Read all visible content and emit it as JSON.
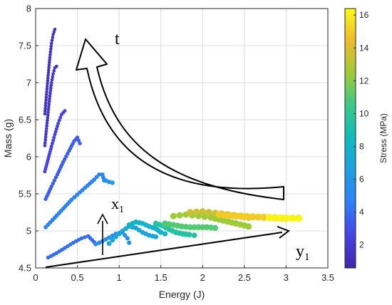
{
  "chart_data": {
    "type": "scatter",
    "xlabel": "Energy (J)",
    "ylabel": "Mass (g)",
    "xlim": [
      0,
      3.5
    ],
    "ylim": [
      4.5,
      8
    ],
    "xticks": [
      "0",
      "0.5",
      "1",
      "1.5",
      "2",
      "2.5",
      "3",
      "3.5"
    ],
    "yticks": [
      "4.5",
      "5",
      "5.5",
      "6",
      "6.5",
      "7",
      "7.5",
      "8"
    ],
    "grid": true,
    "colorbar": {
      "label": "Stress (MPa)",
      "range": [
        0.6,
        16.4
      ],
      "ticks": [
        "2",
        "4",
        "6",
        "8",
        "10",
        "12",
        "14",
        "16"
      ],
      "colormap": "parula"
    },
    "annotations": [
      {
        "text": "t",
        "subscript": ""
      },
      {
        "text": "x",
        "subscript": "1"
      },
      {
        "text": "y",
        "subscript": "1"
      }
    ],
    "series": [
      {
        "stress": 1.5,
        "x": [
          0.11,
          0.13,
          0.15,
          0.17,
          0.19,
          0.21,
          0.23
        ],
        "y": [
          6.58,
          6.84,
          7.1,
          7.34,
          7.53,
          7.65,
          7.72
        ]
      },
      {
        "stress": 1.8,
        "x": [
          0.11,
          0.13,
          0.15,
          0.17,
          0.19,
          0.21,
          0.23,
          0.25
        ],
        "y": [
          6.15,
          6.38,
          6.6,
          6.82,
          7.0,
          7.12,
          7.2,
          7.22
        ]
      },
      {
        "stress": 2.5,
        "x": [
          0.11,
          0.15,
          0.19,
          0.23,
          0.27,
          0.31,
          0.35
        ],
        "y": [
          5.8,
          5.97,
          6.14,
          6.3,
          6.45,
          6.57,
          6.62
        ]
      },
      {
        "stress": 3.5,
        "x": [
          0.12,
          0.19,
          0.26,
          0.33,
          0.4,
          0.46,
          0.5,
          0.53
        ],
        "y": [
          5.43,
          5.6,
          5.76,
          5.93,
          6.08,
          6.21,
          6.26,
          6.18
        ]
      },
      {
        "stress": 4.8,
        "x": [
          0.12,
          0.23,
          0.33,
          0.43,
          0.53,
          0.62,
          0.7,
          0.76,
          0.8,
          0.82
        ],
        "y": [
          5.05,
          5.18,
          5.3,
          5.42,
          5.52,
          5.61,
          5.69,
          5.76,
          5.76,
          5.68
        ]
      },
      {
        "stress": 6.0,
        "x": [
          0.84,
          0.88,
          0.92
        ],
        "y": [
          5.68,
          5.66,
          5.65
        ]
      },
      {
        "stress": 4.0,
        "x": [
          0.15,
          0.25,
          0.35,
          0.45,
          0.55,
          0.63,
          0.7
        ],
        "y": [
          4.64,
          4.7,
          4.77,
          4.84,
          4.9,
          4.93,
          4.85
        ]
      },
      {
        "stress": 5.5,
        "x": [
          0.72,
          0.8,
          0.88,
          0.96,
          1.04,
          1.1,
          1.12
        ],
        "y": [
          4.82,
          4.86,
          4.91,
          4.96,
          4.98,
          4.9,
          4.84
        ]
      },
      {
        "stress": 7.0,
        "x": [
          0.88,
          0.96,
          1.04,
          1.12,
          1.2,
          1.28,
          1.36,
          1.44
        ],
        "y": [
          4.83,
          4.92,
          5.0,
          5.06,
          5.04,
          4.98,
          4.94,
          4.92
        ]
      },
      {
        "stress": 8.0,
        "x": [
          1.12,
          1.2,
          1.28,
          1.36,
          1.44,
          1.5,
          1.55
        ],
        "y": [
          5.08,
          5.12,
          5.1,
          5.06,
          5.03,
          4.98,
          4.96
        ]
      },
      {
        "stress": 9.5,
        "x": [
          1.44,
          1.52,
          1.6,
          1.68,
          1.76,
          1.84,
          1.9
        ],
        "y": [
          5.1,
          5.07,
          5.02,
          4.98,
          4.96,
          4.95,
          4.94
        ]
      },
      {
        "stress": 11.0,
        "x": [
          1.55,
          1.65,
          1.75,
          1.85,
          1.95,
          2.05,
          2.15
        ],
        "y": [
          5.1,
          5.08,
          5.06,
          5.05,
          5.05,
          5.05,
          5.04
        ]
      },
      {
        "stress": 12.5,
        "x": [
          1.65,
          1.8,
          1.95,
          2.1,
          2.25,
          2.4,
          2.55
        ],
        "y": [
          5.2,
          5.22,
          5.2,
          5.18,
          5.14,
          5.1,
          5.06
        ]
      },
      {
        "stress": 13.5,
        "x": [
          1.85,
          2.0,
          2.15,
          2.3,
          2.45,
          2.55
        ],
        "y": [
          5.25,
          5.26,
          5.24,
          5.22,
          5.2,
          5.18
        ]
      },
      {
        "stress": 15.0,
        "x": [
          2.2,
          2.4,
          2.6,
          2.8,
          2.95
        ],
        "y": [
          5.22,
          5.2,
          5.19,
          5.18,
          5.17
        ]
      },
      {
        "stress": 16.2,
        "x": [
          2.8,
          3.0,
          3.15
        ],
        "y": [
          5.18,
          5.17,
          5.17
        ]
      }
    ]
  }
}
